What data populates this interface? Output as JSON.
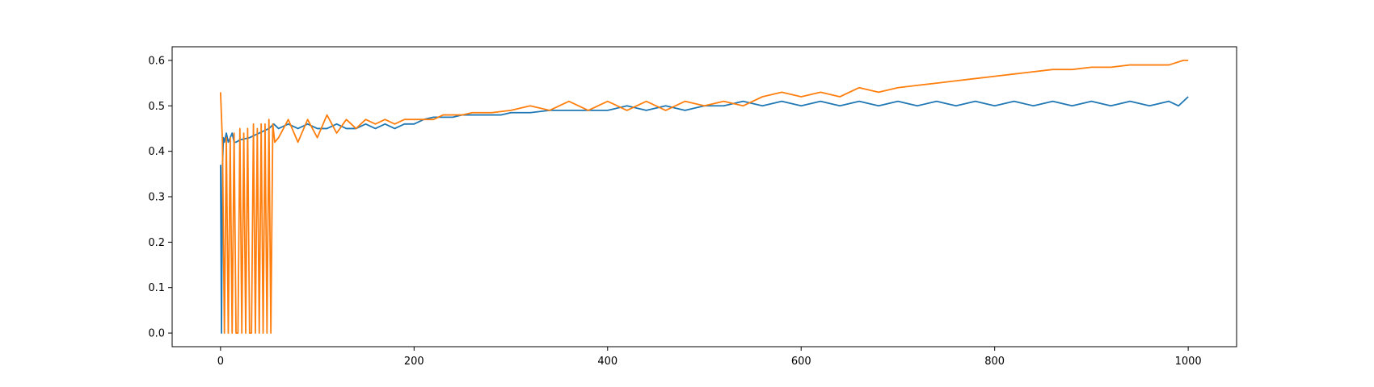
{
  "chart_data": {
    "type": "line",
    "xlim": [
      -50,
      1050
    ],
    "ylim": [
      -0.03,
      0.63
    ],
    "x_ticks": [
      0,
      200,
      400,
      600,
      800,
      1000
    ],
    "y_ticks": [
      0.0,
      0.1,
      0.2,
      0.3,
      0.4,
      0.5,
      0.6
    ],
    "x_tick_labels": [
      "0",
      "200",
      "400",
      "600",
      "800",
      "1000"
    ],
    "y_tick_labels": [
      "0.0",
      "0.1",
      "0.2",
      "0.3",
      "0.4",
      "0.5",
      "0.6"
    ],
    "grid": false,
    "series": [
      {
        "color": "#1f77b4",
        "x": [
          0,
          1,
          2,
          3,
          4,
          6,
          8,
          10,
          12,
          14,
          16,
          20,
          30,
          40,
          50,
          55,
          60,
          70,
          80,
          90,
          100,
          110,
          120,
          130,
          140,
          150,
          160,
          170,
          180,
          190,
          200,
          210,
          220,
          230,
          240,
          250,
          260,
          270,
          280,
          290,
          300,
          320,
          340,
          360,
          380,
          400,
          420,
          440,
          460,
          480,
          500,
          520,
          540,
          560,
          580,
          600,
          620,
          640,
          660,
          680,
          700,
          720,
          740,
          760,
          780,
          800,
          820,
          840,
          860,
          880,
          900,
          920,
          940,
          960,
          980,
          990,
          1000
        ],
        "y": [
          0.37,
          0.0,
          0.37,
          0.43,
          0.42,
          0.44,
          0.42,
          0.43,
          0.44,
          0.42,
          0.42,
          0.425,
          0.43,
          0.44,
          0.45,
          0.46,
          0.45,
          0.46,
          0.45,
          0.46,
          0.45,
          0.45,
          0.46,
          0.45,
          0.45,
          0.46,
          0.45,
          0.46,
          0.45,
          0.46,
          0.46,
          0.47,
          0.475,
          0.475,
          0.475,
          0.48,
          0.48,
          0.48,
          0.48,
          0.48,
          0.485,
          0.485,
          0.49,
          0.49,
          0.49,
          0.49,
          0.5,
          0.49,
          0.5,
          0.49,
          0.5,
          0.5,
          0.51,
          0.5,
          0.51,
          0.5,
          0.51,
          0.5,
          0.51,
          0.5,
          0.51,
          0.5,
          0.51,
          0.5,
          0.51,
          0.5,
          0.51,
          0.5,
          0.51,
          0.5,
          0.51,
          0.5,
          0.51,
          0.5,
          0.51,
          0.5,
          0.52
        ]
      },
      {
        "color": "#ff7f0e",
        "x": [
          0,
          2,
          4,
          6,
          8,
          10,
          12,
          14,
          16,
          18,
          20,
          22,
          24,
          26,
          28,
          30,
          32,
          34,
          36,
          38,
          40,
          42,
          44,
          46,
          48,
          50,
          52,
          54,
          56,
          60,
          70,
          80,
          90,
          100,
          110,
          120,
          130,
          140,
          150,
          160,
          170,
          180,
          190,
          200,
          210,
          220,
          230,
          240,
          250,
          260,
          280,
          300,
          320,
          340,
          360,
          380,
          400,
          420,
          440,
          460,
          480,
          500,
          520,
          540,
          560,
          580,
          600,
          620,
          640,
          660,
          680,
          700,
          720,
          740,
          760,
          780,
          800,
          820,
          840,
          860,
          880,
          900,
          920,
          940,
          960,
          980,
          995,
          1000
        ],
        "y": [
          0.53,
          0.42,
          0.0,
          0.43,
          0.0,
          0.43,
          0.0,
          0.44,
          0.0,
          0.0,
          0.45,
          0.0,
          0.44,
          0.0,
          0.45,
          0.0,
          0.0,
          0.46,
          0.0,
          0.45,
          0.0,
          0.46,
          0.0,
          0.46,
          0.0,
          0.47,
          0.0,
          0.46,
          0.42,
          0.43,
          0.47,
          0.42,
          0.47,
          0.43,
          0.48,
          0.44,
          0.47,
          0.45,
          0.47,
          0.46,
          0.47,
          0.46,
          0.47,
          0.47,
          0.47,
          0.47,
          0.48,
          0.48,
          0.48,
          0.485,
          0.485,
          0.49,
          0.5,
          0.49,
          0.51,
          0.49,
          0.51,
          0.49,
          0.51,
          0.49,
          0.51,
          0.5,
          0.51,
          0.5,
          0.52,
          0.53,
          0.52,
          0.53,
          0.52,
          0.54,
          0.53,
          0.54,
          0.545,
          0.55,
          0.555,
          0.56,
          0.565,
          0.57,
          0.575,
          0.58,
          0.58,
          0.585,
          0.585,
          0.59,
          0.59,
          0.59,
          0.6,
          0.6
        ]
      }
    ]
  }
}
